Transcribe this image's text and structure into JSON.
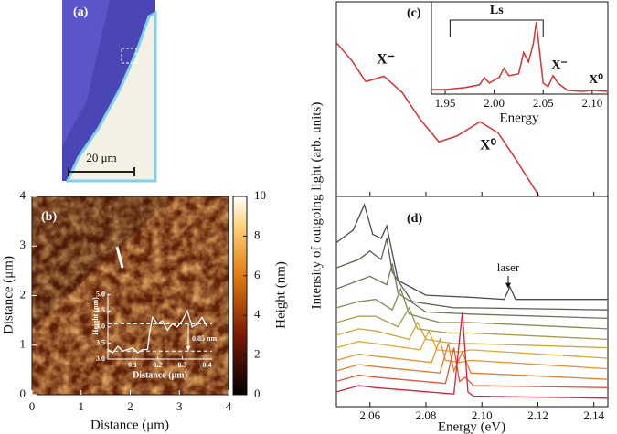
{
  "chart_data": [
    {
      "type": "image",
      "label": "(a)",
      "scale_bar": "20 μm"
    },
    {
      "type": "map",
      "label": "(b)",
      "xlabel": "Distance (μm)",
      "ylabel": "Distance (μm)",
      "xlim": [
        0,
        4
      ],
      "ylim": [
        0,
        4
      ],
      "xticks": [
        0,
        1,
        2,
        3,
        4
      ],
      "yticks": [
        0,
        1,
        2,
        3,
        4
      ],
      "zlabel": "Height (nm)",
      "zlim": [
        0,
        10
      ],
      "zticks": [
        0,
        2,
        4,
        6,
        8,
        10
      ],
      "inset": {
        "type": "line",
        "xlabel": "Distance (μm)",
        "ylabel": "Height (nm)",
        "xlim": [
          0,
          0.42
        ],
        "ylim": [
          3,
          5.05
        ],
        "xticks": [
          0.1,
          0.2,
          0.3,
          0.4
        ],
        "yticks": [
          {
            "value": 3,
            "label": "3.0"
          },
          {
            "value": 3.5,
            "label": "3.5"
          },
          {
            "value": 4,
            "label": "4.0"
          },
          {
            "value": 4.5,
            "label": "4.5"
          },
          {
            "value": 5,
            "label": "5.0"
          }
        ],
        "hlines": [
          3.25,
          4.1
        ],
        "annotation": "0.85 nm",
        "color": "#ffffff",
        "x": [
          0,
          0.02,
          0.04,
          0.06,
          0.08,
          0.1,
          0.12,
          0.14,
          0.16,
          0.17,
          0.18,
          0.2,
          0.22,
          0.24,
          0.26,
          0.28,
          0.3,
          0.32,
          0.34,
          0.36,
          0.38,
          0.4
        ],
        "values": [
          3.3,
          3.2,
          3.4,
          3.25,
          3.3,
          3.35,
          3.2,
          3.3,
          3.3,
          3.9,
          4.3,
          4.1,
          4.2,
          3.9,
          4.1,
          4.0,
          4.2,
          4.5,
          4.0,
          4.1,
          4.3,
          4.0
        ]
      }
    },
    {
      "type": "line",
      "label": "(c)",
      "log_y": true,
      "xlim": [
        2.048,
        2.145
      ],
      "ylim": [
        0.1,
        700
      ],
      "color": "#e03030",
      "x": [
        2.048,
        2.0536,
        2.0585,
        2.065,
        2.0715,
        2.078,
        2.0846,
        2.0911,
        2.0993,
        2.1058,
        2.1123,
        2.1205
      ],
      "values": [
        109,
        47.7,
        18.5,
        23.7,
        11.3,
        3.3,
        1.2,
        1.57,
        3.0,
        1.8,
        0.52,
        0.1
      ],
      "annotations": [
        "X⁻",
        "X⁰"
      ],
      "inset": {
        "type": "line",
        "xlabel": "Energy",
        "xlim": [
          1.936,
          2.116
        ],
        "ylim": [
          0,
          100
        ],
        "xticks": [
          1.95,
          {
            "value": 2,
            "label": "2.00"
          },
          2.05,
          {
            "value": 2.1,
            "label": "2.10"
          }
        ],
        "color": "#e03030",
        "x": [
          1.936,
          1.95,
          1.97,
          1.985,
          1.99,
          1.995,
          2.005,
          2.01,
          2.015,
          2.025,
          2.03,
          2.035,
          2.04,
          2.043,
          2.046,
          2.05,
          2.055,
          2.06,
          2.065,
          2.075,
          2.09,
          2.1,
          2.116
        ],
        "values": [
          5,
          5,
          7,
          10,
          18,
          12,
          18,
          28,
          20,
          22,
          45,
          35,
          55,
          78,
          50,
          12,
          8,
          20,
          12,
          4,
          3,
          4,
          3
        ],
        "bracket_label": "Ls",
        "bracket": [
          1.955,
          2.05
        ],
        "annotations": [
          "X⁻",
          "X⁰"
        ]
      }
    },
    {
      "type": "line",
      "label": "(d)",
      "xlabel": "Energy (eV)",
      "ylabel": "Intensity of outgoing light (arb. units)",
      "xlim": [
        2.048,
        2.145
      ],
      "ylim": [
        0,
        100
      ],
      "xticks": [
        2.06,
        2.08,
        {
          "value": 2.1,
          "label": "2.10"
        },
        2.12,
        2.14
      ],
      "annotation": "laser",
      "series": [
        {
          "color": "#4b4b4b",
          "x": [
            2.048,
            2.054,
            2.058,
            2.061,
            2.064,
            2.066,
            2.07,
            2.08,
            2.096,
            2.108,
            2.11,
            2.112,
            2.145
          ],
          "values": [
            78,
            84,
            96,
            82,
            80,
            86,
            60,
            53,
            52,
            51,
            57,
            51,
            51
          ]
        },
        {
          "color": "#5a5e52",
          "x": [
            2.048,
            2.056,
            2.06,
            2.064,
            2.066,
            2.068,
            2.075,
            2.09,
            2.096,
            2.145
          ],
          "values": [
            66,
            70,
            74,
            70,
            80,
            64,
            50,
            47,
            47,
            46
          ]
        },
        {
          "color": "#6a7356",
          "x": [
            2.048,
            2.056,
            2.06,
            2.066,
            2.068,
            2.07,
            2.08,
            2.096,
            2.145
          ],
          "values": [
            56,
            60,
            62,
            58,
            68,
            54,
            45,
            44,
            42
          ]
        },
        {
          "color": "#7f8a55",
          "x": [
            2.048,
            2.056,
            2.062,
            2.068,
            2.071,
            2.074,
            2.085,
            2.096,
            2.145
          ],
          "values": [
            47,
            50,
            51,
            46,
            56,
            44,
            40,
            40,
            37
          ]
        },
        {
          "color": "#a49a4a",
          "x": [
            2.048,
            2.056,
            2.062,
            2.07,
            2.074,
            2.077,
            2.088,
            2.096,
            2.145
          ],
          "values": [
            40,
            43,
            43,
            38,
            47,
            37,
            35,
            35,
            32
          ]
        },
        {
          "color": "#c9a83e",
          "x": [
            2.048,
            2.056,
            2.062,
            2.074,
            2.077,
            2.08,
            2.09,
            2.096,
            2.145
          ],
          "values": [
            34,
            37,
            36,
            32,
            40,
            32,
            30,
            30,
            28
          ]
        },
        {
          "color": "#dcaa35",
          "x": [
            2.048,
            2.056,
            2.062,
            2.078,
            2.081,
            2.084,
            2.092,
            2.096,
            2.145
          ],
          "values": [
            28,
            31,
            30,
            27,
            36,
            27,
            26,
            27,
            23
          ]
        },
        {
          "color": "#e69332",
          "x": [
            2.048,
            2.056,
            2.062,
            2.082,
            2.085,
            2.087,
            2.092,
            2.096,
            2.145
          ],
          "values": [
            22,
            25,
            24,
            21,
            32,
            22,
            21,
            22,
            18
          ]
        },
        {
          "color": "#e77a30",
          "x": [
            2.048,
            2.056,
            2.062,
            2.085,
            2.088,
            2.09,
            2.093,
            2.096,
            2.145
          ],
          "values": [
            17,
            20,
            19,
            16,
            30,
            17,
            26,
            16,
            13
          ]
        },
        {
          "color": "#e0553a",
          "x": [
            2.048,
            2.056,
            2.062,
            2.087,
            2.09,
            2.092,
            2.094,
            2.097,
            2.145
          ],
          "values": [
            12,
            15,
            14,
            11,
            28,
            12,
            14,
            10,
            9
          ]
        },
        {
          "color": "#d8203c",
          "x": [
            2.048,
            2.056,
            2.062,
            2.09,
            2.093,
            2.095,
            2.097,
            2.145
          ],
          "values": [
            7,
            10,
            9,
            6,
            45,
            7,
            5,
            4
          ]
        }
      ]
    }
  ]
}
